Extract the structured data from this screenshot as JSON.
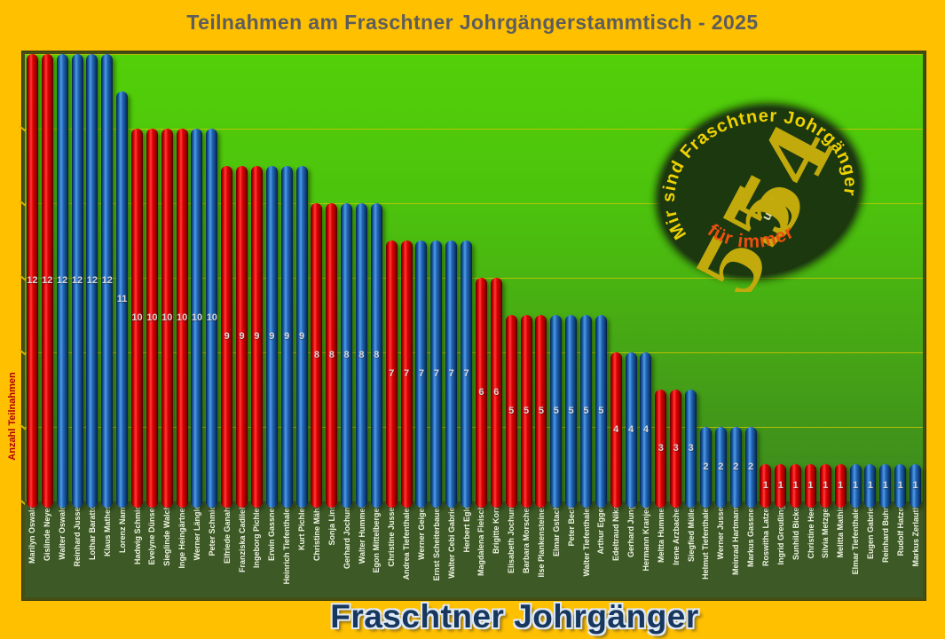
{
  "title": "Teilnahmen am Fraschtner Johrgängerstammtisch - 2025",
  "footer_title": "Fraschtner Johrgänger",
  "logo": {
    "arc_text": "Mir sind Fraschtner Johrgänger",
    "bottom_text": "für immer",
    "number_top": "54",
    "connector": "und",
    "number_bottom": "55"
  },
  "colors": {
    "page_background": "#ffc000",
    "title_text": "#5d5d5d",
    "footer_text": "#17375e",
    "plot_green_top": "#52d008",
    "plot_green_bottom": "#3c881e",
    "label_strip_green": "#3d5a26",
    "gridline_yellow": "#d2c800",
    "bar_red": "#e00000",
    "bar_blue": "#2368b8",
    "value_label": "#d9d9d9",
    "name_label": "#eef3e2",
    "ylabel_text": "#b00000",
    "logo_ellipse": "#1b380f",
    "logo_yellow": "#f0d200",
    "logo_orange": "#ea4f0e"
  },
  "chart_data": {
    "type": "bar",
    "title": "Teilnahmen am Fraschtner Johrgängerstammtisch - 2025",
    "xlabel": "",
    "ylabel": "Anzahl Teilnahmen",
    "ylim": [
      0,
      12
    ],
    "gridline_step": 2,
    "grid": true,
    "legend": false,
    "bar_color_palette": {
      "red": "#e00000",
      "blue": "#2368b8"
    },
    "categories": [
      "Marilyn Oswald",
      "Gislinde Neyer",
      "Walter Oswald",
      "Reinhard Jussel",
      "Lothar Baratto",
      "Klaus Mathes",
      "Lorenz Nami",
      "Hadwig Schmid",
      "Evelyne Dünser",
      "Sieglinde Walch",
      "Inge Heingärtner",
      "Werner Längle",
      "Peter Schmid",
      "Elfriede Ganahl",
      "Franziska Cadilek",
      "Ingeborg Pichler",
      "Erwin Gassner",
      "Heinrich Tiefenthaler",
      "Kurt Pichler",
      "Christine Mähr",
      "Sonja Lins",
      "Gerhard Jochum",
      "Walter Hummer",
      "Egon Mittelberger",
      "Christine Jussel",
      "Andrea Tiefenthaler",
      "Werner Geiger",
      "Ernst Scheiterbauer",
      "Walter Cebi Gabriel",
      "Herbert Egle",
      "Magdalena Fleisch",
      "Brigitte Korn",
      "Elisabeth Jochum",
      "Barbara Morscher",
      "Ilse Plankensteiner",
      "Elmar Gstach",
      "Peter Beck",
      "Walter Tiefenthaler",
      "Arthur Egger",
      "Edeltraud Nika",
      "Gerhard Jung",
      "Hermann Kranjec",
      "Meltta Hummer",
      "Irene Arzbacher",
      "Siegfied Müller",
      "Helmut Tiefenthaler",
      "Werner Jussel",
      "Meinrad Hartmann",
      "Markus Gassner",
      "Roswitha Latzer",
      "Ingrid Greußing",
      "Sunhild Bickel",
      "Christine Heel",
      "Silvia Metzger",
      "Melitta Mathis",
      "Elmar Tiefenthaler",
      "Eugen Gabriel",
      "Reinhard Buhri",
      "Rudolf Hatzel",
      "Markus Zerlauth"
    ],
    "values": [
      12,
      12,
      12,
      12,
      12,
      12,
      11,
      10,
      10,
      10,
      10,
      10,
      10,
      9,
      9,
      9,
      9,
      9,
      9,
      8,
      8,
      8,
      8,
      8,
      7,
      7,
      7,
      7,
      7,
      7,
      6,
      6,
      5,
      5,
      5,
      5,
      5,
      5,
      5,
      4,
      4,
      4,
      3,
      3,
      3,
      2,
      2,
      2,
      2,
      1,
      1,
      1,
      1,
      1,
      1,
      1,
      1,
      1,
      1,
      1
    ],
    "bar_colors": [
      "red",
      "red",
      "blue",
      "blue",
      "blue",
      "blue",
      "blue",
      "red",
      "red",
      "red",
      "red",
      "blue",
      "blue",
      "red",
      "red",
      "red",
      "blue",
      "blue",
      "blue",
      "red",
      "red",
      "blue",
      "blue",
      "blue",
      "red",
      "red",
      "blue",
      "blue",
      "blue",
      "blue",
      "red",
      "red",
      "red",
      "red",
      "red",
      "blue",
      "blue",
      "blue",
      "blue",
      "red",
      "blue",
      "blue",
      "red",
      "red",
      "blue",
      "blue",
      "blue",
      "blue",
      "blue",
      "red",
      "red",
      "red",
      "red",
      "red",
      "red",
      "blue",
      "blue",
      "blue",
      "blue",
      "blue"
    ]
  }
}
